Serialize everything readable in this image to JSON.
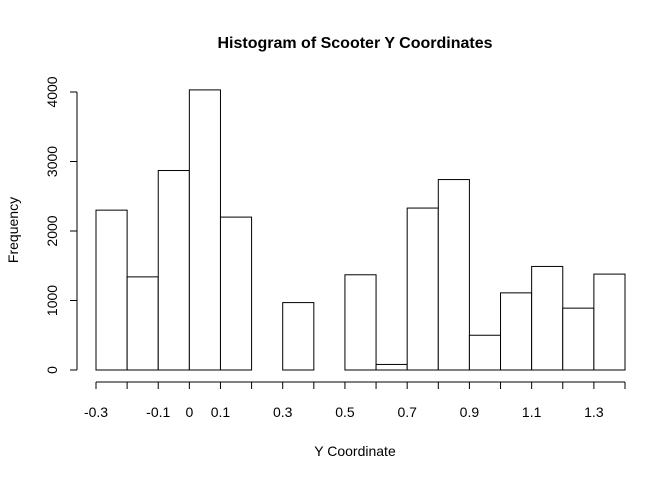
{
  "chart_data": {
    "type": "bar",
    "title": "Histogram of Scooter Y Coordinates",
    "xlabel": "Y Coordinate",
    "ylabel": "Frequency",
    "bin_edges": [
      -0.3,
      -0.2,
      -0.1,
      0.0,
      0.1,
      0.2,
      0.3,
      0.4,
      0.5,
      0.6,
      0.7,
      0.8,
      0.9,
      1.0,
      1.1,
      1.2,
      1.3,
      1.4
    ],
    "values": [
      2300,
      1340,
      2870,
      4030,
      2200,
      0,
      970,
      0,
      1370,
      80,
      2330,
      2740,
      500,
      1110,
      1490,
      890,
      1380
    ],
    "xlim": [
      -0.3,
      1.4
    ],
    "ylim": [
      0,
      4200
    ],
    "y_ticks": [
      0,
      1000,
      2000,
      3000,
      4000
    ],
    "x_ticks": [
      -0.3,
      -0.2,
      -0.1,
      0.0,
      0.1,
      0.2,
      0.3,
      0.4,
      0.5,
      0.6,
      0.7,
      0.8,
      0.9,
      1.0,
      1.1,
      1.2,
      1.3,
      1.4
    ],
    "x_tick_labels": [
      "-0.3",
      "",
      "-0.1",
      "0",
      "0.1",
      "",
      "0.3",
      "",
      "0.5",
      "",
      "0.7",
      "",
      "0.9",
      "",
      "1.1",
      "",
      "1.3",
      ""
    ],
    "y_tick_labels": [
      "0",
      "1000",
      "2000",
      "3000",
      "4000"
    ],
    "grid": false,
    "legend": "none"
  }
}
